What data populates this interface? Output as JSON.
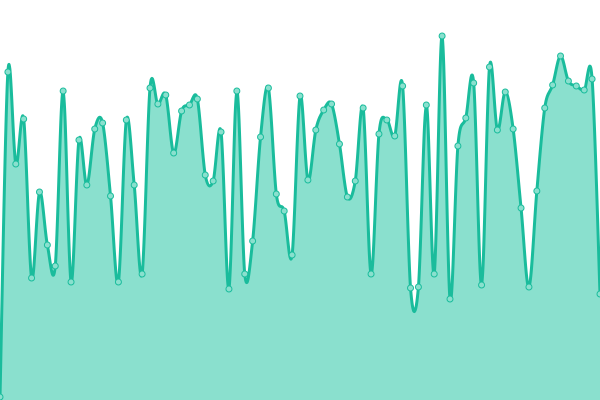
{
  "chart_data": {
    "type": "area",
    "title": "",
    "xlabel": "",
    "ylabel": "",
    "ylim": [
      0,
      400
    ],
    "grid": false,
    "legend": "none",
    "colors": {
      "line": "#1abc9c",
      "fill": "#8ae0ce",
      "point_fill": "#8ae0ce",
      "point_stroke": "#1abc9c"
    },
    "x": [
      0,
      1,
      2,
      3,
      4,
      5,
      6,
      7,
      8,
      9,
      10,
      11,
      12,
      13,
      14,
      15,
      16,
      17,
      18,
      19,
      20,
      21,
      22,
      23,
      24,
      25,
      26,
      27,
      28,
      29,
      30,
      31,
      32,
      33,
      34,
      35,
      36,
      37,
      38,
      39,
      40,
      41,
      42,
      43,
      44,
      45,
      46,
      47,
      48,
      49,
      50,
      51,
      52,
      53,
      54,
      55,
      56,
      57,
      58,
      59,
      60,
      61,
      62,
      63,
      64,
      65,
      66,
      67,
      68,
      69,
      70,
      71,
      72,
      73,
      74,
      75,
      76
    ],
    "values": [
      3,
      328,
      236,
      281,
      122,
      208,
      155,
      134,
      309,
      118,
      260,
      215,
      271,
      277,
      204,
      118,
      280,
      215,
      126,
      312,
      296,
      305,
      247,
      289,
      295,
      301,
      225,
      219,
      268,
      111,
      309,
      126,
      159,
      263,
      312,
      206,
      189,
      145,
      304,
      220,
      270,
      290,
      296,
      256,
      203,
      219,
      292,
      126,
      266,
      280,
      264,
      314,
      112,
      113,
      295,
      126,
      364,
      101,
      254,
      282,
      317,
      115,
      333,
      270,
      308,
      271,
      192,
      113,
      209,
      292,
      315,
      344,
      319,
      314,
      310,
      321,
      106
    ]
  }
}
